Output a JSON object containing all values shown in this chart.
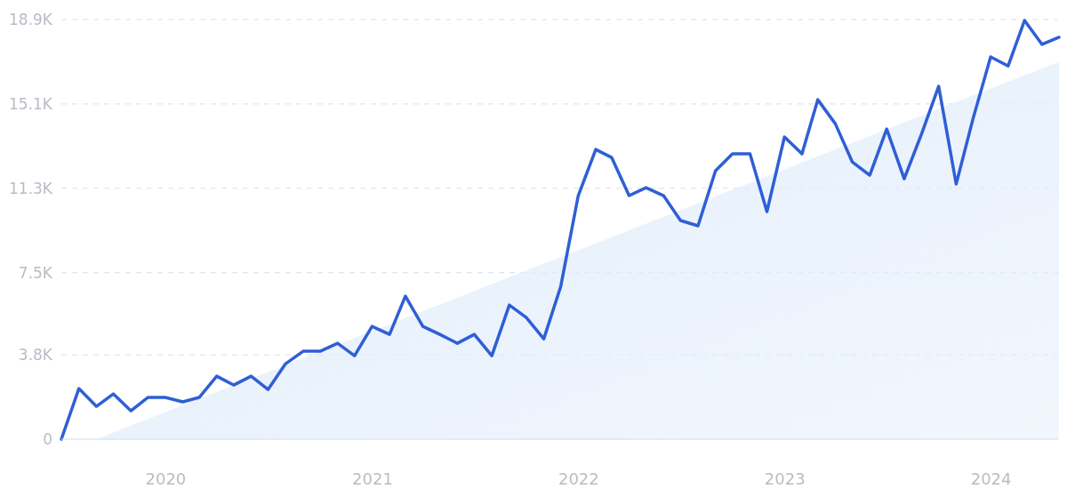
{
  "chart_data": {
    "type": "line",
    "xlim": [
      "2019-07",
      "2024-05"
    ],
    "xticks": [
      "2020",
      "2021",
      "2022",
      "2023",
      "2024"
    ],
    "ylim": [
      0,
      18900
    ],
    "yticks": [
      0,
      {
        "value": 3800,
        "label": "3.8K"
      },
      {
        "value": 7500,
        "label": "7.5K"
      },
      {
        "value": 11300,
        "label": "11.3K"
      },
      {
        "value": 15100,
        "label": "15.1K"
      },
      {
        "value": 18900,
        "label": "18.9K"
      }
    ],
    "grid": "y",
    "series": [
      {
        "type": "area",
        "color": "#e2edfb",
        "x": [
          "2019-09",
          "2024-05"
        ],
        "values": [
          0,
          17000
        ]
      },
      {
        "color": "#2f5fd6",
        "x": [
          "2019-07",
          "2019-08",
          "2019-09",
          "2019-10",
          "2019-11",
          "2019-12",
          "2020-01",
          "2020-02",
          "2020-03",
          "2020-04",
          "2020-05",
          "2020-06",
          "2020-07",
          "2020-08",
          "2020-09",
          "2020-10",
          "2020-11",
          "2020-12",
          "2021-01",
          "2021-02",
          "2021-03",
          "2021-04",
          "2021-05",
          "2021-06",
          "2021-07",
          "2021-08",
          "2021-09",
          "2021-10",
          "2021-11",
          "2021-12",
          "2022-01",
          "2022-02",
          "2022-03",
          "2022-04",
          "2022-05",
          "2022-06",
          "2022-07",
          "2022-08",
          "2022-09",
          "2022-10",
          "2022-11",
          "2022-12",
          "2023-01",
          "2023-02",
          "2023-03",
          "2023-04",
          "2023-05",
          "2023-06",
          "2023-07",
          "2023-08",
          "2023-09",
          "2023-10",
          "2023-11",
          "2023-12",
          "2024-01",
          "2024-02",
          "2024-03",
          "2024-04",
          "2024-05"
        ],
        "values": [
          0,
          2280,
          1480,
          2040,
          1280,
          1880,
          1880,
          1680,
          1880,
          2840,
          2440,
          2840,
          2240,
          3400,
          3960,
          3960,
          4320,
          3760,
          5080,
          4720,
          6440,
          5080,
          4720,
          4320,
          4720,
          3760,
          6040,
          5480,
          4520,
          6880,
          10970,
          13050,
          12690,
          10970,
          11330,
          10970,
          9850,
          9610,
          12090,
          12850,
          12850,
          10250,
          13610,
          12850,
          15290,
          14210,
          12490,
          11890,
          13970,
          11730,
          13770,
          15890,
          11490,
          14450,
          17220,
          16810,
          18860,
          17780,
          18100
        ]
      }
    ]
  }
}
